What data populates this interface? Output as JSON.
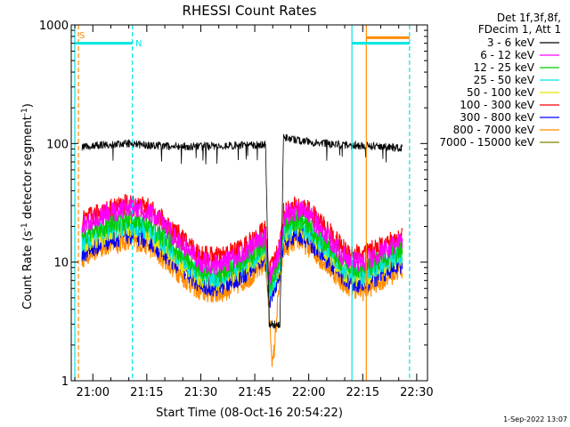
{
  "chart_data": {
    "type": "line",
    "title": "RHESSI Count Rates",
    "xlabel": "Start Time (08-Oct-16 20:54:22)",
    "ylabel": "Count Rate (s⁻¹ detector segment⁻¹)",
    "ylabel_base": "Count Rate (s",
    "ylabel_mid": " detector segment",
    "ylabel_close": ")",
    "ylabel_sup": "-1",
    "yscale": "log",
    "xlim": [
      "20:54",
      "22:33"
    ],
    "ylim": [
      1,
      1000
    ],
    "x_ticks": [
      "21:00",
      "21:15",
      "21:30",
      "21:45",
      "22:00",
      "22:15",
      "22:30"
    ],
    "y_ticks": [
      "1",
      "10",
      "100",
      "1000"
    ],
    "legend_placement": "top-right (outside plot)",
    "legend_header": [
      "Det 1f,3f,8f,",
      "FDecim 1, Att 1"
    ],
    "timestamp": "1-Sep-2022 13:07",
    "attenuator_flag": "S",
    "night_flag": "N",
    "series": [
      {
        "name": "3 - 6 keV",
        "color": "#000000",
        "points": [
          [
            "20:57",
            92
          ],
          [
            "21:00",
            96
          ],
          [
            "21:05",
            98
          ],
          [
            "21:10",
            100
          ],
          [
            "21:15",
            97
          ],
          [
            "21:20",
            95
          ],
          [
            "21:30",
            94
          ],
          [
            "21:40",
            96
          ],
          [
            "21:48",
            98
          ],
          [
            "21:49",
            3
          ],
          [
            "21:52",
            3
          ],
          [
            "21:53",
            112
          ],
          [
            "21:58",
            105
          ],
          [
            "22:05",
            100
          ],
          [
            "22:12",
            96
          ],
          [
            "22:20",
            94
          ],
          [
            "22:26",
            92
          ]
        ]
      },
      {
        "name": "6 - 12 keV",
        "color": "#ff00ff",
        "points": [
          [
            "20:57",
            20
          ],
          [
            "21:03",
            25
          ],
          [
            "21:10",
            29
          ],
          [
            "21:15",
            27
          ],
          [
            "21:20",
            20
          ],
          [
            "21:25",
            14
          ],
          [
            "21:30",
            10
          ],
          [
            "21:35",
            9.5
          ],
          [
            "21:40",
            11
          ],
          [
            "21:45",
            14
          ],
          [
            "21:48",
            17
          ],
          [
            "21:49",
            7
          ],
          [
            "21:52",
            13
          ],
          [
            "21:53",
            24
          ],
          [
            "21:57",
            28
          ],
          [
            "22:00",
            25
          ],
          [
            "22:05",
            17
          ],
          [
            "22:10",
            11
          ],
          [
            "22:15",
            10
          ],
          [
            "22:20",
            12
          ],
          [
            "22:26",
            15
          ]
        ]
      },
      {
        "name": "12 - 25 keV",
        "color": "#00cc00",
        "points": [
          [
            "20:57",
            17
          ],
          [
            "21:03",
            20
          ],
          [
            "21:10",
            23
          ],
          [
            "21:15",
            21
          ],
          [
            "21:20",
            16
          ],
          [
            "21:25",
            11.5
          ],
          [
            "21:30",
            8.5
          ],
          [
            "21:35",
            8
          ],
          [
            "21:40",
            9.5
          ],
          [
            "21:45",
            12
          ],
          [
            "21:48",
            15
          ],
          [
            "21:49",
            6
          ],
          [
            "21:52",
            11
          ],
          [
            "21:53",
            20
          ],
          [
            "21:57",
            23
          ],
          [
            "22:00",
            20
          ],
          [
            "22:05",
            14
          ],
          [
            "22:10",
            9.5
          ],
          [
            "22:15",
            8.5
          ],
          [
            "22:20",
            10.5
          ],
          [
            "22:26",
            13
          ]
        ]
      },
      {
        "name": "25 - 50 keV",
        "color": "#00e5e5",
        "points": [
          [
            "20:57",
            15
          ],
          [
            "21:03",
            18
          ],
          [
            "21:10",
            21
          ],
          [
            "21:15",
            19
          ],
          [
            "21:20",
            14.5
          ],
          [
            "21:25",
            10.5
          ],
          [
            "21:30",
            7.8
          ],
          [
            "21:35",
            7.4
          ],
          [
            "21:40",
            8.8
          ],
          [
            "21:45",
            11
          ],
          [
            "21:48",
            14
          ],
          [
            "21:49",
            5.5
          ],
          [
            "21:52",
            10
          ],
          [
            "21:53",
            18
          ],
          [
            "21:57",
            21
          ],
          [
            "22:00",
            18.5
          ],
          [
            "22:05",
            13
          ],
          [
            "22:10",
            8.8
          ],
          [
            "22:15",
            7.8
          ],
          [
            "22:20",
            9.6
          ],
          [
            "22:26",
            12
          ]
        ]
      },
      {
        "name": "50 - 100 keV",
        "color": "#e5e500",
        "points": [
          [
            "20:57",
            14
          ],
          [
            "21:03",
            17
          ],
          [
            "21:10",
            20
          ],
          [
            "21:15",
            18
          ],
          [
            "21:20",
            13.5
          ],
          [
            "21:25",
            9.8
          ],
          [
            "21:30",
            7.3
          ],
          [
            "21:35",
            7
          ],
          [
            "21:40",
            8.3
          ],
          [
            "21:45",
            10.5
          ],
          [
            "21:48",
            13
          ],
          [
            "21:49",
            5.2
          ],
          [
            "21:52",
            9.5
          ],
          [
            "21:53",
            17
          ],
          [
            "21:57",
            20
          ],
          [
            "22:00",
            17.5
          ],
          [
            "22:05",
            12.2
          ],
          [
            "22:10",
            8.3
          ],
          [
            "22:15",
            7.3
          ],
          [
            "22:20",
            9
          ],
          [
            "22:26",
            11.2
          ]
        ]
      },
      {
        "name": "100 - 300 keV",
        "color": "#ff0000",
        "points": [
          [
            "20:57",
            22
          ],
          [
            "21:03",
            27
          ],
          [
            "21:10",
            31
          ],
          [
            "21:15",
            29
          ],
          [
            "21:20",
            22
          ],
          [
            "21:25",
            15.5
          ],
          [
            "21:30",
            11.5
          ],
          [
            "21:35",
            11
          ],
          [
            "21:40",
            12.5
          ],
          [
            "21:45",
            15.5
          ],
          [
            "21:48",
            19
          ],
          [
            "21:49",
            8
          ],
          [
            "21:52",
            14
          ],
          [
            "21:53",
            26
          ],
          [
            "21:57",
            30
          ],
          [
            "22:00",
            27
          ],
          [
            "22:05",
            19
          ],
          [
            "22:10",
            12.5
          ],
          [
            "22:15",
            11.5
          ],
          [
            "22:20",
            13.5
          ],
          [
            "22:26",
            16.5
          ]
        ]
      },
      {
        "name": "300 - 800 keV",
        "color": "#0000ff",
        "points": [
          [
            "20:57",
            12
          ],
          [
            "21:03",
            15
          ],
          [
            "21:10",
            17.5
          ],
          [
            "21:15",
            16
          ],
          [
            "21:20",
            12
          ],
          [
            "21:25",
            8.8
          ],
          [
            "21:30",
            6.5
          ],
          [
            "21:35",
            6.2
          ],
          [
            "21:40",
            7.4
          ],
          [
            "21:45",
            9.3
          ],
          [
            "21:48",
            11.5
          ],
          [
            "21:49",
            4.6
          ],
          [
            "21:52",
            8.5
          ],
          [
            "21:53",
            15
          ],
          [
            "21:57",
            17.5
          ],
          [
            "22:00",
            15.5
          ],
          [
            "22:05",
            10.8
          ],
          [
            "22:10",
            7.4
          ],
          [
            "22:15",
            6.5
          ],
          [
            "22:20",
            8
          ],
          [
            "22:26",
            10
          ]
        ]
      },
      {
        "name": "800 - 7000 keV",
        "color": "#ff8c00",
        "points": [
          [
            "20:57",
            11
          ],
          [
            "21:03",
            13.5
          ],
          [
            "21:10",
            15.5
          ],
          [
            "21:15",
            14
          ],
          [
            "21:20",
            10.5
          ],
          [
            "21:25",
            7.5
          ],
          [
            "21:30",
            5.6
          ],
          [
            "21:35",
            5.4
          ],
          [
            "21:40",
            6.4
          ],
          [
            "21:45",
            8
          ],
          [
            "21:48",
            10
          ],
          [
            "21:49",
            3.8
          ],
          [
            "21:50",
            1.3
          ],
          [
            "21:52",
            7.5
          ],
          [
            "21:53",
            13
          ],
          [
            "21:57",
            15.5
          ],
          [
            "22:00",
            13.5
          ],
          [
            "22:05",
            9.5
          ],
          [
            "22:10",
            6.5
          ],
          [
            "22:15",
            5.7
          ],
          [
            "22:20",
            7
          ],
          [
            "22:26",
            8.8
          ]
        ]
      },
      {
        "name": "7000 - 15000 keV",
        "color": "#808000",
        "points": []
      }
    ],
    "markers": [
      {
        "type": "vline",
        "x": "20:55",
        "color": "#00e5e5",
        "style": "solid"
      },
      {
        "type": "vline",
        "x": "20:56",
        "color": "#ff8c00",
        "style": "dashed"
      },
      {
        "type": "vline",
        "x": "21:11",
        "color": "#00e5e5",
        "style": "dashed"
      },
      {
        "type": "vline",
        "x": "22:12",
        "color": "#00e5e5",
        "style": "solid"
      },
      {
        "type": "vline",
        "x": "22:16",
        "color": "#ff8c00",
        "style": "solid"
      },
      {
        "type": "vline",
        "x": "22:28",
        "color": "#00e5e5",
        "style": "dashed"
      }
    ],
    "bars": [
      {
        "x1": "20:55",
        "x2": "21:11",
        "y": 700,
        "color": "#00e5e5"
      },
      {
        "x1": "22:12",
        "x2": "22:28",
        "y": 700,
        "color": "#00e5e5"
      },
      {
        "x1": "22:16",
        "x2": "22:28",
        "y": 780,
        "color": "#ff8c00"
      }
    ]
  }
}
